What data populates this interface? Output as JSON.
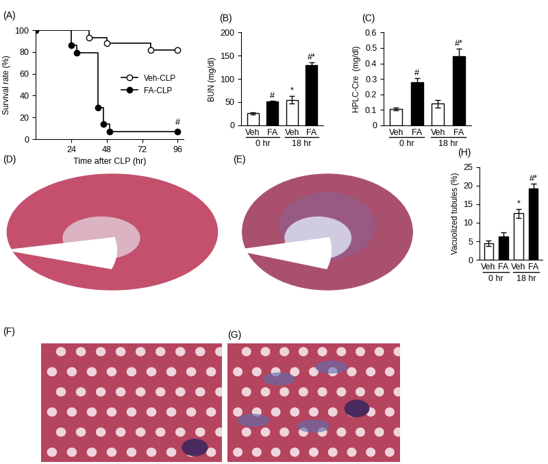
{
  "chart_data": [
    {
      "panel": "(A)",
      "type": "line",
      "x_label": "Time after CLP (hr)",
      "y_label": "Survival rate (%)",
      "xlim": [
        0,
        100
      ],
      "xticks": [
        24,
        48,
        72,
        96
      ],
      "ylim": [
        0,
        100
      ],
      "yticks": [
        0,
        20,
        40,
        60,
        80,
        100
      ],
      "legend": "center right",
      "series": [
        {
          "name": "Veh-CLP",
          "color": "#000000",
          "marker": "circle-open",
          "line_style": "steps",
          "x": [
            0,
            36,
            48,
            78,
            96
          ],
          "values": [
            100,
            93,
            88,
            82,
            82
          ]
        },
        {
          "name": "FA-CLP",
          "color": "#000000",
          "marker": "circle",
          "line_style": "steps",
          "x": [
            0,
            24,
            28,
            42,
            46,
            50,
            96
          ],
          "values": [
            100,
            86,
            79,
            29,
            14,
            7,
            7
          ],
          "end_mark": "#"
        }
      ]
    },
    {
      "panel": "(B)",
      "type": "bar",
      "y_label": "BUN (mg/dl)",
      "categories": [
        "Veh",
        "FA",
        "Veh",
        "FA"
      ],
      "groups": [
        "0 hr",
        "0 hr",
        "18 hr",
        "18 hr"
      ],
      "values": [
        26,
        51,
        55,
        130
      ],
      "errors": [
        2,
        2,
        8,
        5
      ],
      "marks": [
        null,
        "#",
        "*",
        "#*"
      ],
      "colors": [
        "#ffffff",
        "#000000",
        "#ffffff",
        "#000000"
      ],
      "ylim": [
        0,
        200
      ],
      "yticks": [
        0,
        50,
        100,
        150,
        200
      ]
    },
    {
      "panel": "(C)",
      "type": "bar",
      "y_label": "HPLC-Cre  (mg/dl)",
      "categories": [
        "Veh",
        "FA",
        "Veh",
        "FA"
      ],
      "groups": [
        "0 hr",
        "0 hr",
        "18 hr",
        "18 hr"
      ],
      "values": [
        0.105,
        0.28,
        0.14,
        0.445
      ],
      "errors": [
        0.01,
        0.025,
        0.025,
        0.05
      ],
      "marks": [
        null,
        "#",
        null,
        "#*"
      ],
      "colors": [
        "#ffffff",
        "#000000",
        "#ffffff",
        "#000000"
      ],
      "ylim": [
        0,
        0.6
      ],
      "yticks": [
        0,
        0.1,
        0.2,
        0.3,
        0.4,
        0.5,
        0.6
      ]
    },
    {
      "panel": "(H)",
      "type": "bar",
      "y_label": "Vacuolized tubules (%)",
      "categories": [
        "Veh",
        "FA",
        "Veh",
        "FA"
      ],
      "groups": [
        "0 hr",
        "0 hr",
        "18 hr",
        "18 hr"
      ],
      "values": [
        4.5,
        6.3,
        12.5,
        19.2
      ],
      "errors": [
        0.7,
        1.1,
        1.2,
        1.3
      ],
      "marks": [
        null,
        null,
        "*",
        "#*"
      ],
      "colors": [
        "#ffffff",
        "#000000",
        "#ffffff",
        "#000000"
      ],
      "ylim": [
        0,
        25
      ],
      "yticks": [
        0,
        5,
        10,
        15,
        20,
        25
      ]
    }
  ],
  "image_panels": [
    {
      "panel": "(D)"
    },
    {
      "panel": "(E)"
    },
    {
      "panel": "(F)"
    },
    {
      "panel": "(G)"
    }
  ]
}
